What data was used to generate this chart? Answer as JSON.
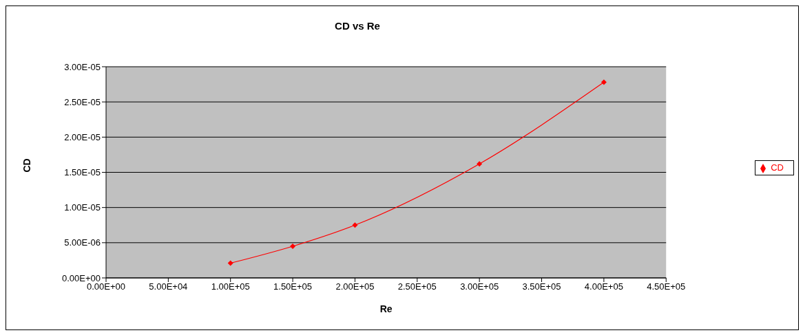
{
  "chart_data": {
    "type": "line",
    "title": "CD vs Re",
    "xlabel": "Re",
    "ylabel": "CD",
    "x": [
      100000,
      150000,
      200000,
      300000,
      400000
    ],
    "series": [
      {
        "name": "CD",
        "color": "#ff0000",
        "values": [
          2.1e-06,
          4.5e-06,
          7.5e-06,
          1.62e-05,
          2.78e-05
        ]
      }
    ],
    "xlim": [
      0,
      450000
    ],
    "xticks": [
      {
        "value": 0,
        "label": "0.00E+00"
      },
      {
        "value": 50000,
        "label": "5.00E+04"
      },
      {
        "value": 100000,
        "label": "1.00E+05"
      },
      {
        "value": 150000,
        "label": "1.50E+05"
      },
      {
        "value": 200000,
        "label": "2.00E+05"
      },
      {
        "value": 250000,
        "label": "2.50E+05"
      },
      {
        "value": 300000,
        "label": "3.00E+05"
      },
      {
        "value": 350000,
        "label": "3.50E+05"
      },
      {
        "value": 400000,
        "label": "4.00E+05"
      },
      {
        "value": 450000,
        "label": "4.50E+05"
      }
    ],
    "ylim": [
      0,
      3e-05
    ],
    "yticks": [
      {
        "value": 0,
        "label": "0.00E+00"
      },
      {
        "value": 5e-06,
        "label": "5.00E-06"
      },
      {
        "value": 1e-05,
        "label": "1.00E-05"
      },
      {
        "value": 1.5e-05,
        "label": "1.50E-05"
      },
      {
        "value": 2e-05,
        "label": "2.00E-05"
      },
      {
        "value": 2.5e-05,
        "label": "2.50E-05"
      },
      {
        "value": 3e-05,
        "label": "3.00E-05"
      }
    ],
    "grid": "y",
    "legend": "right",
    "marker": "diamond",
    "line_style": "solid"
  }
}
